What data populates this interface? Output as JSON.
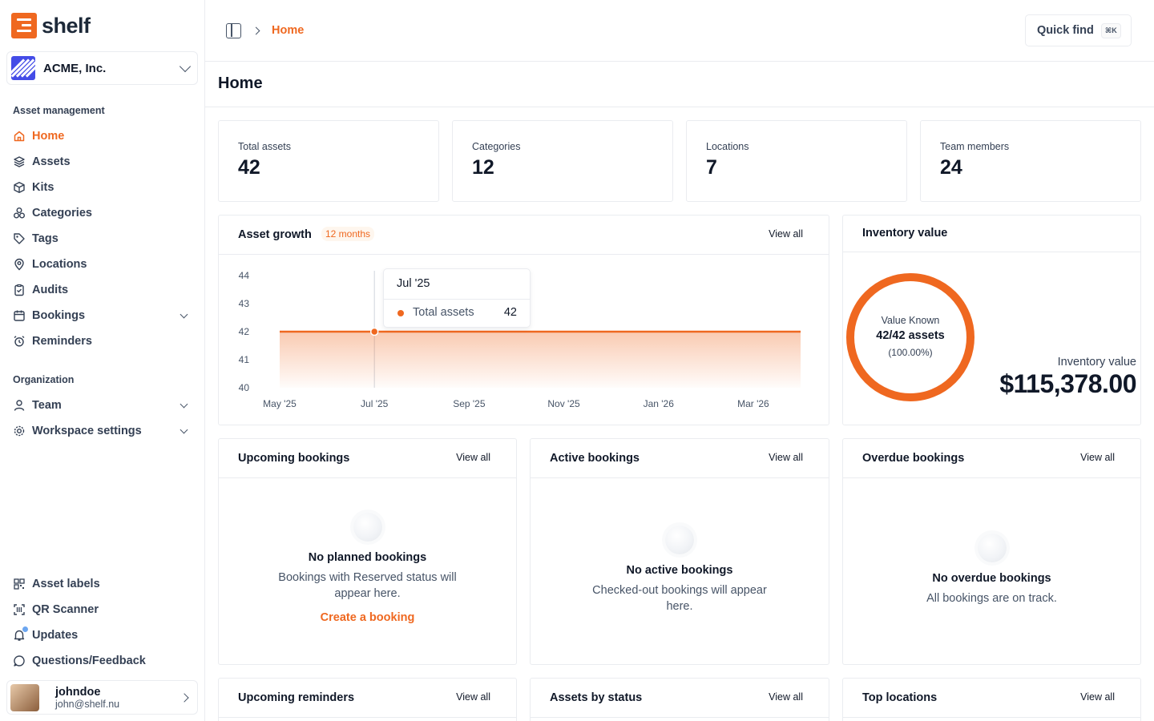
{
  "app": {
    "name": "shelf"
  },
  "org": {
    "name": "ACME, Inc."
  },
  "sidebar": {
    "sections": {
      "asset_management": "Asset management",
      "organization": "Organization"
    },
    "items": [
      {
        "label": "Home",
        "icon": "home-icon",
        "active": true
      },
      {
        "label": "Assets",
        "icon": "assets-icon"
      },
      {
        "label": "Kits",
        "icon": "kits-icon"
      },
      {
        "label": "Categories",
        "icon": "categories-icon"
      },
      {
        "label": "Tags",
        "icon": "tag-icon"
      },
      {
        "label": "Locations",
        "icon": "location-icon"
      },
      {
        "label": "Audits",
        "icon": "audits-icon"
      },
      {
        "label": "Bookings",
        "icon": "calendar-icon",
        "expandable": true
      },
      {
        "label": "Reminders",
        "icon": "alarm-icon"
      },
      {
        "label": "Team",
        "icon": "user-icon",
        "expandable": true
      },
      {
        "label": "Workspace settings",
        "icon": "gear-icon",
        "expandable": true
      }
    ],
    "bottom": [
      {
        "label": "Asset labels",
        "icon": "qr-icon"
      },
      {
        "label": "QR Scanner",
        "icon": "scan-icon"
      },
      {
        "label": "Updates",
        "icon": "bell-icon"
      },
      {
        "label": "Questions/Feedback",
        "icon": "chat-icon"
      }
    ],
    "user": {
      "name": "johndoe",
      "email": "john@shelf.nu"
    }
  },
  "topbar": {
    "breadcrumb": "Home",
    "quick_find": "Quick find",
    "shortcut": "⌘K"
  },
  "page": {
    "title": "Home"
  },
  "stats": [
    {
      "label": "Total assets",
      "value": "42"
    },
    {
      "label": "Categories",
      "value": "12"
    },
    {
      "label": "Locations",
      "value": "7"
    },
    {
      "label": "Team members",
      "value": "24"
    }
  ],
  "view_all": "View all",
  "asset_growth": {
    "title": "Asset growth",
    "badge": "12 months",
    "tooltip": {
      "title": "Jul '25",
      "label": "Total assets",
      "value": "42"
    }
  },
  "chart_data": {
    "type": "area",
    "title": "Asset growth",
    "x": [
      "May '25",
      "Jun '25",
      "Jul '25",
      "Aug '25",
      "Sep '25",
      "Oct '25",
      "Nov '25",
      "Dec '25",
      "Jan '26",
      "Feb '26",
      "Mar '26",
      "Apr '26"
    ],
    "x_tick_labels": [
      "May '25",
      "Jul '25",
      "Sep '25",
      "Nov '25",
      "Jan '26",
      "Mar '26"
    ],
    "series": [
      {
        "name": "Total assets",
        "values": [
          42,
          42,
          42,
          42,
          42,
          42,
          42,
          42,
          42,
          42,
          42,
          42
        ]
      }
    ],
    "y_ticks": [
      40,
      41,
      42,
      43,
      44
    ],
    "ylim": [
      40,
      44
    ],
    "color": "#ef6820",
    "grid": false
  },
  "inventory": {
    "title": "Inventory value",
    "known_label": "Value Known",
    "known_count": "42/42 assets",
    "known_pct": "(100.00%)",
    "known_fraction": 1.0,
    "value_label": "Inventory value",
    "value": "$115,378.00"
  },
  "bookings": {
    "upcoming": {
      "title": "Upcoming bookings",
      "empty_title": "No planned bookings",
      "empty_desc": "Bookings with Reserved status will appear here.",
      "action": "Create a booking"
    },
    "active": {
      "title": "Active bookings",
      "empty_title": "No active bookings",
      "empty_desc": "Checked-out bookings will appear here."
    },
    "overdue": {
      "title": "Overdue bookings",
      "empty_title": "No overdue bookings",
      "empty_desc": "All bookings are on track."
    }
  },
  "bottom_cards": [
    {
      "title": "Upcoming reminders"
    },
    {
      "title": "Assets by status"
    },
    {
      "title": "Top locations"
    }
  ]
}
